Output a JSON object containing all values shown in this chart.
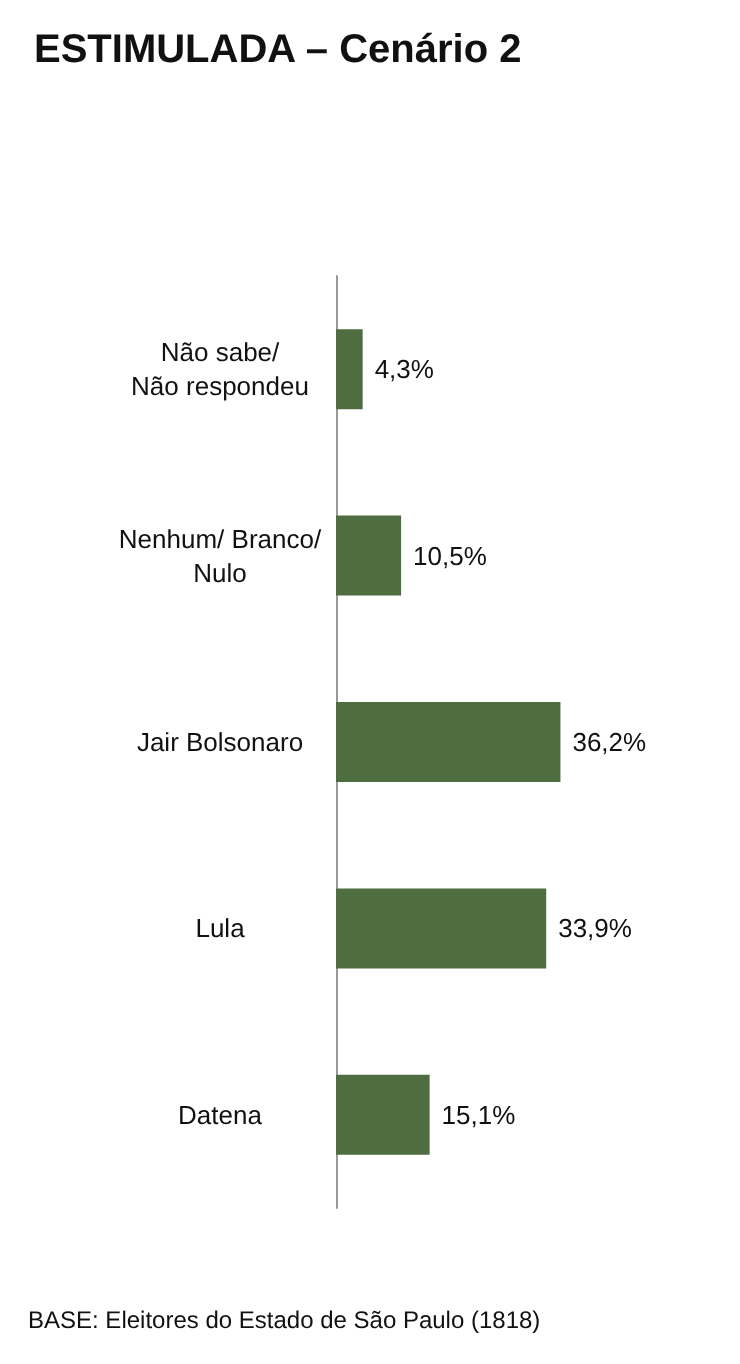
{
  "chart_data": {
    "type": "bar",
    "orientation": "horizontal",
    "title": "ESTIMULADA – Cenário 2",
    "categories": [
      "Não sabe/\nNão respondeu",
      "Nenhum/ Branco/\nNulo",
      "Jair Bolsonaro",
      "Lula",
      "Datena"
    ],
    "values": [
      4.3,
      10.5,
      36.2,
      33.9,
      15.1
    ],
    "value_labels": [
      "4,3%",
      "10,5%",
      "36,2%",
      "33,9%",
      "15,1%"
    ],
    "color": "#4e6e3f",
    "tick_labels": "y",
    "annotations": [
      "BASE: Eleitores do Estado de São Paulo (1818)"
    ]
  }
}
